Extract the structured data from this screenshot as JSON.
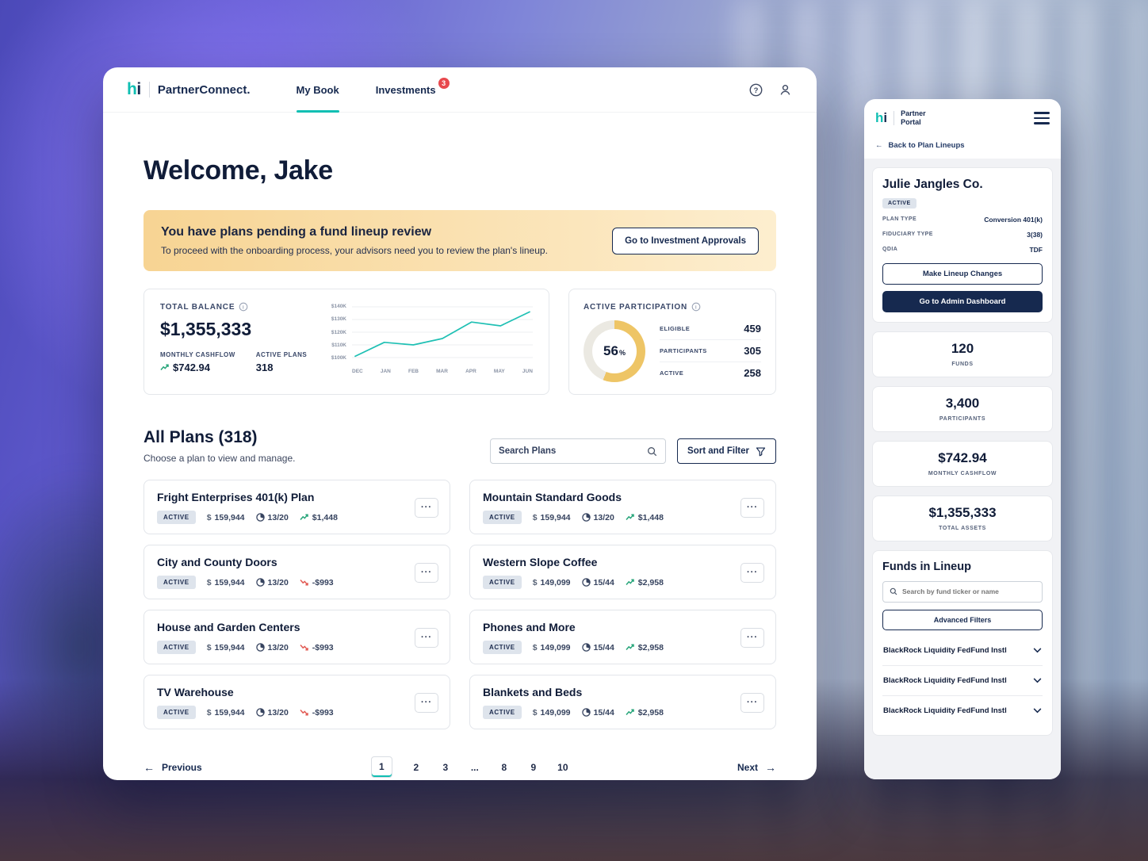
{
  "theme": {
    "accent_teal": "#10bfb3",
    "navy": "#16294f",
    "banner_start": "#f7d493",
    "banner_end": "#fdeecf",
    "donut_color": "#eec566",
    "donut_track": "#ebe9e2",
    "badge_red": "#e8484d",
    "trend_up_color": "#27a57a",
    "trend_down_color": "#e25c55"
  },
  "icons": {
    "dollar": "$",
    "ellipsis": "···",
    "prev_arrow": "←",
    "next_arrow": "→",
    "back_arrow": "←"
  },
  "desktop": {
    "header": {
      "logo_h": "h",
      "logo_i": "i",
      "brand": "PartnerConnect.",
      "nav_my_book": "My Book",
      "nav_investments": "Investments",
      "investments_badge": "3"
    },
    "welcome_title": "Welcome, Jake",
    "banner": {
      "title": "You have plans pending a fund lineup review",
      "subtitle": "To proceed with the onboarding process, your advisors need you to review the plan's lineup.",
      "button_label": "Go to Investment Approvals"
    },
    "balance_card": {
      "label": "TOTAL BALANCE",
      "value": "$1,355,333",
      "monthly_cashflow_label": "MONTHLY CASHFLOW",
      "monthly_cashflow_value": "$742.94",
      "active_plans_label": "ACTIVE PLANS",
      "active_plans_value": "318"
    },
    "participation_card": {
      "label": "ACTIVE PARTICIPATION",
      "percent": "56",
      "percent_suffix": "%",
      "stats": [
        {
          "label": "ELIGIBLE",
          "value": "459"
        },
        {
          "label": "PARTICIPANTS",
          "value": "305"
        },
        {
          "label": "ACTIVE",
          "value": "258"
        }
      ]
    },
    "plans": {
      "title": "All Plans (318)",
      "subtitle": "Choose a plan to view and manage.",
      "search_placeholder": "Search Plans",
      "sort_filter_label": "Sort and Filter",
      "cards": [
        {
          "title": "Fright Enterprises 401(k) Plan",
          "status": "ACTIVE",
          "balance": "159,944",
          "ratio": "13/20",
          "trend": "$1,448",
          "trend_dir": "up"
        },
        {
          "title": "Mountain Standard Goods",
          "status": "ACTIVE",
          "balance": "159,944",
          "ratio": "13/20",
          "trend": "$1,448",
          "trend_dir": "up"
        },
        {
          "title": "City and County Doors",
          "status": "ACTIVE",
          "balance": "159,944",
          "ratio": "13/20",
          "trend": "-$993",
          "trend_dir": "down"
        },
        {
          "title": "Western Slope Coffee",
          "status": "ACTIVE",
          "balance": "149,099",
          "ratio": "15/44",
          "trend": "$2,958",
          "trend_dir": "up"
        },
        {
          "title": "House and Garden Centers",
          "status": "ACTIVE",
          "balance": "159,944",
          "ratio": "13/20",
          "trend": "-$993",
          "trend_dir": "down"
        },
        {
          "title": "Phones and More",
          "status": "ACTIVE",
          "balance": "149,099",
          "ratio": "15/44",
          "trend": "$2,958",
          "trend_dir": "up"
        },
        {
          "title": "TV Warehouse",
          "status": "ACTIVE",
          "balance": "159,944",
          "ratio": "13/20",
          "trend": "-$993",
          "trend_dir": "down"
        },
        {
          "title": "Blankets and Beds",
          "status": "ACTIVE",
          "balance": "149,099",
          "ratio": "15/44",
          "trend": "$2,958",
          "trend_dir": "up"
        }
      ]
    },
    "pagination": {
      "previous_label": "Previous",
      "next_label": "Next",
      "pages": [
        {
          "label": "1",
          "active": true
        },
        {
          "label": "2"
        },
        {
          "label": "3"
        },
        {
          "label": "..."
        },
        {
          "label": "8"
        },
        {
          "label": "9"
        },
        {
          "label": "10"
        }
      ]
    }
  },
  "mobile": {
    "header": {
      "logo_h": "h",
      "logo_i": "i",
      "brand_line1": "Partner",
      "brand_line2": "Portal"
    },
    "back_link": "Back to Plan Lineups",
    "company_card": {
      "name": "Julie Jangles Co.",
      "status": "ACTIVE",
      "rows": [
        {
          "label": "PLAN TYPE",
          "value": "Conversion 401(k)"
        },
        {
          "label": "FIDUCIARY TYPE",
          "value": "3(38)"
        },
        {
          "label": "QDIA",
          "value": "TDF"
        }
      ],
      "outline_button": "Make Lineup Changes",
      "primary_button": "Go to Admin Dashboard"
    },
    "stats": [
      {
        "value": "120",
        "label": "FUNDS"
      },
      {
        "value": "3,400",
        "label": "PARTICIPANTS"
      },
      {
        "value": "$742.94",
        "label": "MONTHLY CASHFLOW"
      },
      {
        "value": "$1,355,333",
        "label": "TOTAL ASSETS"
      }
    ],
    "funds": {
      "title": "Funds in Lineup",
      "search_placeholder": "Search by fund ticker or name",
      "filters_button": "Advanced Filters",
      "items": [
        {
          "name": "BlackRock Liquidity FedFund Instl"
        },
        {
          "name": "BlackRock Liquidity FedFund Instl"
        },
        {
          "name": "BlackRock Liquidity FedFund Instl"
        }
      ]
    }
  },
  "chart_data": {
    "type": "line",
    "title": "Total balance trend",
    "x": [
      "DEC",
      "JAN",
      "FEB",
      "MAR",
      "APR",
      "MAY",
      "JUN"
    ],
    "values": [
      101,
      112,
      110,
      115,
      128,
      125,
      136
    ],
    "unit": "thousand USD",
    "yticks": [
      "$140K",
      "$130K",
      "$120K",
      "$110K",
      "$100K"
    ],
    "ylim": [
      100,
      140
    ],
    "grid": true,
    "legend": false,
    "line_color": "#1fc0b4"
  }
}
